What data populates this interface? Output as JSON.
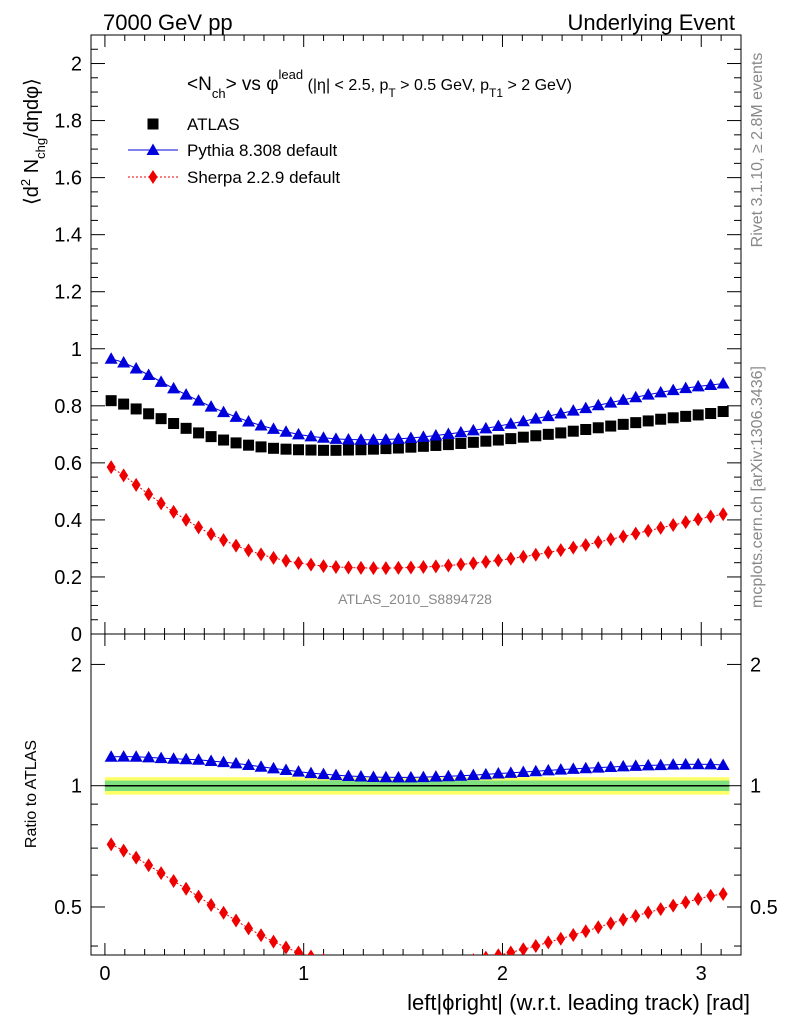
{
  "header": {
    "left": "7000 GeV pp",
    "right": "Underlying Event"
  },
  "side_labels": {
    "rivet": "Rivet 3.1.10, ≥ 2.8M events",
    "mcplots": "mcplots.cern.ch [arXiv:1306.3436]"
  },
  "chart_data": {
    "type": "scatter",
    "title": "<Nch> vs φlead (|η| < 2.5, pT > 0.5 GeV, pT1 > 2 GeV)",
    "title_parts": {
      "main_a": "<N",
      "main_sub": "ch",
      "main_b": "> vs φ",
      "main_sup": "lead",
      "cut_a": " (|η| < 2.5, p",
      "cut_sub1": "T",
      "cut_b": " > 0.5 GeV, p",
      "cut_sub2": "T1",
      "cut_c": " > 2 GeV)"
    },
    "ylabel": "⟨d² Nchg/dηdφ⟩",
    "ylabel_parts": {
      "a": "⟨d",
      "sup": "2",
      "b": " N",
      "sub": "chg",
      "c": "/dηdφ⟩"
    },
    "xlabel": "left|ϕright| (w.r.t. leading track) [rad]",
    "ratio_ylabel": "Ratio to ATLAS",
    "watermark": "ATLAS_2010_S8894728",
    "xlim": [
      -0.07,
      3.2
    ],
    "ylim": [
      0,
      2.1
    ],
    "ratio_ylim": [
      0.38,
      2.38
    ],
    "x_ticks": [
      0,
      1,
      2,
      3
    ],
    "y_ticks": [
      0,
      0.2,
      0.4,
      0.6,
      0.8,
      1,
      1.2,
      1.4,
      1.6,
      1.8,
      2
    ],
    "ratio_ticks": [
      0.5,
      1,
      2
    ],
    "grid": false,
    "legend_position": "top-left",
    "x": [
      0.0314,
      0.0942,
      0.1571,
      0.2199,
      0.2827,
      0.3456,
      0.4084,
      0.4712,
      0.5341,
      0.5969,
      0.6597,
      0.7226,
      0.7854,
      0.8482,
      0.9111,
      0.9739,
      1.0367,
      1.0996,
      1.1624,
      1.2252,
      1.2881,
      1.3509,
      1.4137,
      1.4765,
      1.5394,
      1.6022,
      1.665,
      1.7279,
      1.7907,
      1.8535,
      1.9164,
      1.9792,
      2.042,
      2.1049,
      2.1677,
      2.2305,
      2.2934,
      2.3562,
      2.419,
      2.4819,
      2.5447,
      2.6075,
      2.6704,
      2.7332,
      2.796,
      2.8589,
      2.9217,
      2.9845,
      3.0474,
      3.1102
    ],
    "series": [
      {
        "name": "ATLAS",
        "marker": "square",
        "color": "#000000",
        "values": [
          0.818,
          0.806,
          0.789,
          0.772,
          0.755,
          0.738,
          0.721,
          0.705,
          0.692,
          0.68,
          0.67,
          0.662,
          0.656,
          0.651,
          0.648,
          0.646,
          0.645,
          0.644,
          0.644,
          0.645,
          0.646,
          0.648,
          0.65,
          0.652,
          0.655,
          0.658,
          0.661,
          0.664,
          0.668,
          0.672,
          0.676,
          0.68,
          0.685,
          0.69,
          0.695,
          0.7,
          0.705,
          0.711,
          0.717,
          0.723,
          0.729,
          0.735,
          0.741,
          0.747,
          0.753,
          0.758,
          0.763,
          0.768,
          0.773,
          0.78
        ]
      },
      {
        "name": "Pythia 8.308 default",
        "marker": "triangle",
        "color": "#0000dd",
        "values": [
          0.965,
          0.952,
          0.931,
          0.908,
          0.884,
          0.861,
          0.839,
          0.818,
          0.797,
          0.778,
          0.761,
          0.745,
          0.731,
          0.719,
          0.709,
          0.7,
          0.693,
          0.688,
          0.684,
          0.682,
          0.681,
          0.681,
          0.682,
          0.684,
          0.687,
          0.691,
          0.696,
          0.701,
          0.707,
          0.714,
          0.721,
          0.729,
          0.737,
          0.746,
          0.755,
          0.764,
          0.773,
          0.783,
          0.792,
          0.802,
          0.811,
          0.821,
          0.83,
          0.839,
          0.847,
          0.855,
          0.862,
          0.868,
          0.873,
          0.878
        ]
      },
      {
        "name": "Sherpa 2.2.9 default",
        "marker": "diamond",
        "color": "#ee0000",
        "linestyle": "dotted",
        "values": [
          0.585,
          0.556,
          0.523,
          0.49,
          0.458,
          0.428,
          0.4,
          0.374,
          0.35,
          0.329,
          0.31,
          0.293,
          0.279,
          0.267,
          0.257,
          0.249,
          0.243,
          0.238,
          0.235,
          0.233,
          0.232,
          0.231,
          0.231,
          0.232,
          0.233,
          0.235,
          0.237,
          0.24,
          0.244,
          0.248,
          0.253,
          0.258,
          0.264,
          0.271,
          0.278,
          0.286,
          0.294,
          0.303,
          0.312,
          0.322,
          0.332,
          0.342,
          0.352,
          0.362,
          0.372,
          0.382,
          0.392,
          0.402,
          0.412,
          0.42
        ]
      }
    ],
    "ratio_band": {
      "inner_color": "#7fe07f",
      "outer_color": "#ffff66",
      "inner_halfwidth": 0.03,
      "outer_halfwidth": 0.05
    }
  }
}
